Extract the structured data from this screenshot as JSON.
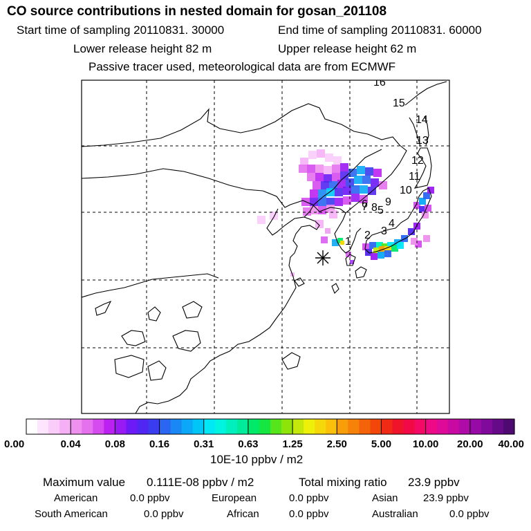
{
  "header": {
    "title": "CO  source contributions in nested domain for gosan_201108",
    "start_label": "Start time of sampling 20110831. 30000",
    "end_label": "End time of sampling 20110831. 60000",
    "lower_label": "Lower release height   82 m",
    "upper_label": "Upper release height   62 m",
    "tracer_label": "Passive tracer used, meteorological data are from ECMWF"
  },
  "chart_data": {
    "type": "heatmap",
    "title": "CO  source contributions in nested domain for gosan_201108",
    "map_markers": [
      "1",
      "2",
      "3",
      "4",
      "5",
      "6",
      "7",
      "8",
      "9",
      "10",
      "11",
      "12",
      "13",
      "14",
      "15",
      "16"
    ],
    "receptor": "gosan",
    "colorbar": {
      "label": "10E-10 ppbv / m2",
      "ticks": [
        "0.00",
        "0.04",
        "0.08",
        "0.16",
        "0.31",
        "0.63",
        "1.25",
        "2.50",
        "5.00",
        "10.00",
        "20.00",
        "40.00"
      ],
      "colors": [
        "#ffffff",
        "#fde6fd",
        "#f9ccf9",
        "#f5b0f5",
        "#ee90ee",
        "#e571ef",
        "#d64bf0",
        "#bb22f2",
        "#9a1af4",
        "#6c1af6",
        "#5226f2",
        "#3a3cf0",
        "#2a66f2",
        "#1a88f4",
        "#0aa8f6",
        "#00c6f8",
        "#00e8f6",
        "#00f4e0",
        "#00f0bd",
        "#00ec9a",
        "#00ea6a",
        "#16e640",
        "#56e41a",
        "#8ee40a",
        "#c4e80a",
        "#eef00a",
        "#f6d80a",
        "#fac00a",
        "#f89e0a",
        "#f6820a",
        "#f4620a",
        "#f2460a",
        "#f02a14",
        "#f0142a",
        "#f20a46",
        "#f40a66",
        "#ee0a86",
        "#de0a98",
        "#c80aa2",
        "#b00aa8",
        "#980aa6",
        "#800a9a",
        "#660a88",
        "#4e0a70"
      ]
    }
  },
  "stats": {
    "max_label": "Maximum value",
    "max_value": "0.111E-08 ppbv / m2",
    "total_label": "Total mixing ratio",
    "total_value": "23.9 ppbv",
    "american_label": "American",
    "american_value": "0.0 ppbv",
    "european_label": "European",
    "european_value": "0.0 ppbv",
    "asian_label": "Asian",
    "asian_value": "23.9 ppbv",
    "south_american_label": "South American",
    "south_american_value": "0.0 ppbv",
    "african_label": "African",
    "african_value": "0.0 ppbv",
    "australian_label": "Australian",
    "australian_value": "0.0 ppbv"
  }
}
